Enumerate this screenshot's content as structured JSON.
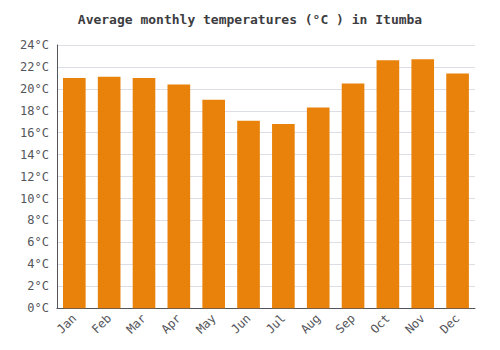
{
  "chart_data": {
    "type": "bar",
    "title": "Average monthly temperatures (°C ) in Itumba",
    "categories": [
      "Jan",
      "Feb",
      "Mar",
      "Apr",
      "May",
      "Jun",
      "Jul",
      "Aug",
      "Sep",
      "Oct",
      "Nov",
      "Dec"
    ],
    "values": [
      21.0,
      21.1,
      21.0,
      20.4,
      19.0,
      17.1,
      16.8,
      18.3,
      20.5,
      22.6,
      22.7,
      21.4
    ],
    "color": "#E8820A",
    "ylim": [
      0,
      24
    ],
    "yticks": [
      {
        "value": 0,
        "label": "0°C"
      },
      {
        "value": 2,
        "label": "2°C"
      },
      {
        "value": 4,
        "label": "4°C"
      },
      {
        "value": 6,
        "label": "6°C"
      },
      {
        "value": 8,
        "label": "8°C"
      },
      {
        "value": 10,
        "label": "10°C"
      },
      {
        "value": 12,
        "label": "12°C"
      },
      {
        "value": 14,
        "label": "14°C"
      },
      {
        "value": 16,
        "label": "16°C"
      },
      {
        "value": 18,
        "label": "18°C"
      },
      {
        "value": 20,
        "label": "20°C"
      },
      {
        "value": 22,
        "label": "22°C"
      },
      {
        "value": 24,
        "label": "24°C"
      }
    ],
    "grid": true
  }
}
